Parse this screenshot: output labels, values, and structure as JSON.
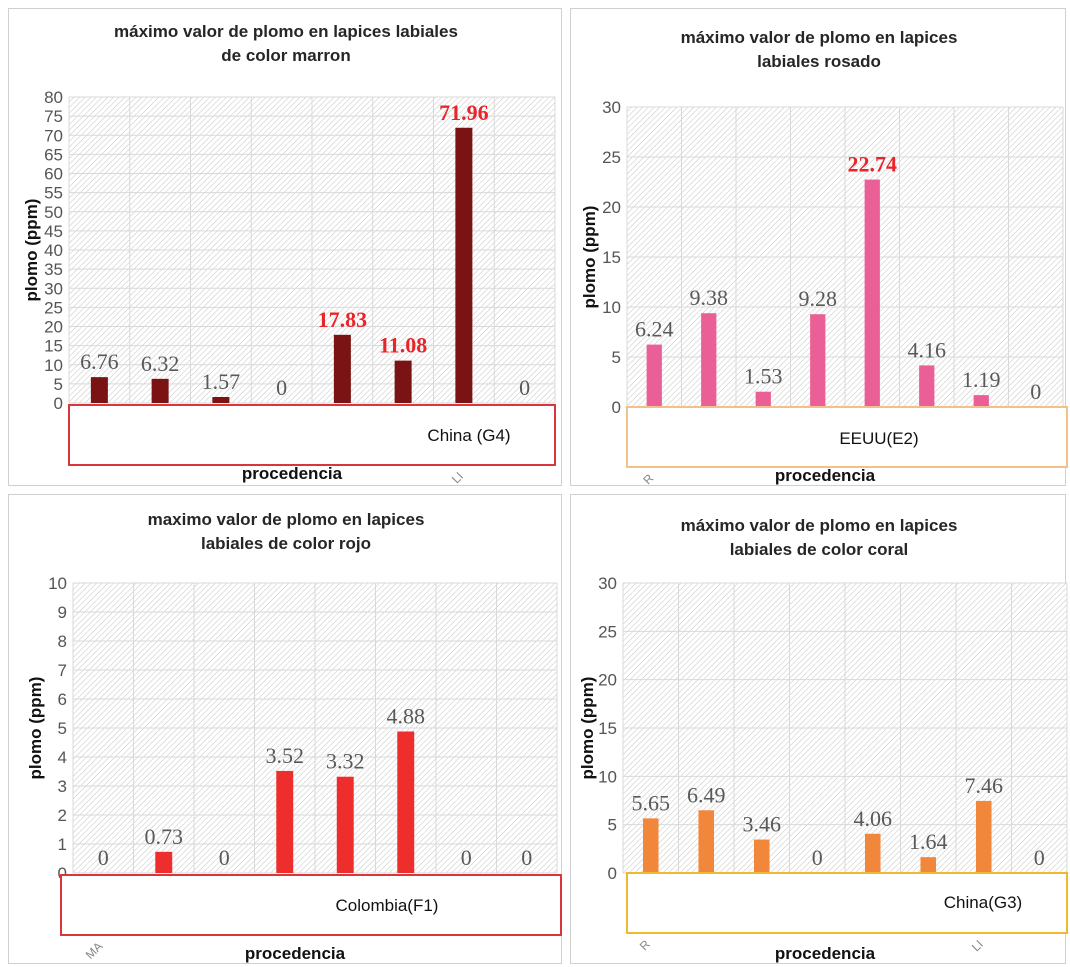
{
  "chart_data": [
    {
      "type": "bar",
      "title": "máximo valor de plomo en lapices labiales de color marron",
      "title_lines": [
        "máximo valor de plomo en lapices labiales",
        "de color marron"
      ],
      "ylabel": "plomo (ppm)",
      "xlabel": "procedencia",
      "ylim": [
        0,
        80
      ],
      "yticks": [
        0,
        5,
        10,
        15,
        20,
        25,
        30,
        35,
        40,
        45,
        50,
        55,
        60,
        65,
        70,
        75,
        80
      ],
      "values": [
        6.76,
        6.32,
        1.57,
        0,
        17.83,
        11.08,
        71.96,
        0
      ],
      "labels": [
        "6.76",
        "6.32",
        "1.57",
        "0",
        "17.83",
        "11.08",
        "71.96",
        "0"
      ],
      "highlight": [
        false,
        false,
        false,
        false,
        true,
        true,
        true,
        false
      ],
      "category_fragments": [
        "",
        "",
        "",
        "",
        "",
        "",
        "LI",
        ""
      ],
      "bar_color": "#7a1414",
      "highlight_color": "#e8262a",
      "legend_text": "China (G4)",
      "legend_border": "#d9363a",
      "grid": true
    },
    {
      "type": "bar",
      "title": "máximo valor de plomo en lapices labiales rosado",
      "title_lines": [
        "máximo valor  de plomo en lapices",
        "labiales  rosado"
      ],
      "ylabel": "plomo (ppm)",
      "xlabel": "procedencia",
      "ylim": [
        0,
        30
      ],
      "yticks": [
        0,
        5,
        10,
        15,
        20,
        25,
        30
      ],
      "values": [
        6.24,
        9.38,
        1.53,
        9.28,
        22.74,
        4.16,
        1.19,
        0
      ],
      "labels": [
        "6.24",
        "9.38",
        "1.53",
        "9.28",
        "22.74",
        "4.16",
        "1.19",
        "0"
      ],
      "highlight": [
        false,
        false,
        false,
        false,
        true,
        false,
        false,
        false
      ],
      "category_fragments": [
        "R",
        "",
        "",
        "",
        "",
        "",
        "",
        ""
      ],
      "bar_color": "#ea6096",
      "highlight_color": "#e8262a",
      "legend_text": "EEUU(E2)",
      "legend_border": "#f3c08a",
      "grid": true
    },
    {
      "type": "bar",
      "title": "maximo valor de plomo en lapices labiales de color rojo",
      "title_lines": [
        "maximo valor de plomo en lapices",
        "labiales de color rojo"
      ],
      "ylabel": "plomo (ppm)",
      "xlabel": "procedencia",
      "ylim": [
        0,
        10
      ],
      "yticks": [
        0,
        1,
        2,
        3,
        4,
        5,
        6,
        7,
        8,
        9,
        10
      ],
      "values": [
        0,
        0.73,
        0,
        3.52,
        3.32,
        4.88,
        0,
        0
      ],
      "labels": [
        "0",
        "0.73",
        "0",
        "3.52",
        "3.32",
        "4.88",
        "0",
        "0"
      ],
      "highlight": [
        false,
        false,
        false,
        false,
        false,
        false,
        false,
        false
      ],
      "category_fragments": [
        "MA",
        "",
        "",
        "",
        "",
        "",
        "",
        ""
      ],
      "bar_color": "#ee2d2d",
      "highlight_color": "#e8262a",
      "legend_text": "Colombia(F1)",
      "legend_border": "#d9363a",
      "grid": true
    },
    {
      "type": "bar",
      "title": "máximo valor de plomo en lapices labiales de color coral",
      "title_lines": [
        "máximo valor de plomo en lapices",
        "labiales de color coral"
      ],
      "ylabel": "plomo (ppm)",
      "xlabel": "procedencia",
      "ylim": [
        0,
        30
      ],
      "yticks": [
        0,
        5,
        10,
        15,
        20,
        25,
        30
      ],
      "values": [
        5.65,
        6.49,
        3.46,
        0,
        4.06,
        1.64,
        7.46,
        0
      ],
      "labels": [
        "5.65",
        "6.49",
        "3.46",
        "0",
        "4.06",
        "1.64",
        "7.46",
        "0"
      ],
      "highlight": [
        false,
        false,
        false,
        false,
        false,
        false,
        false,
        false
      ],
      "category_fragments": [
        "R",
        "",
        "",
        "",
        "",
        "",
        "LI",
        ""
      ],
      "bar_color": "#f0873a",
      "highlight_color": "#e8262a",
      "legend_text": "China(G3)",
      "legend_border": "#f0b730",
      "grid": true
    }
  ]
}
